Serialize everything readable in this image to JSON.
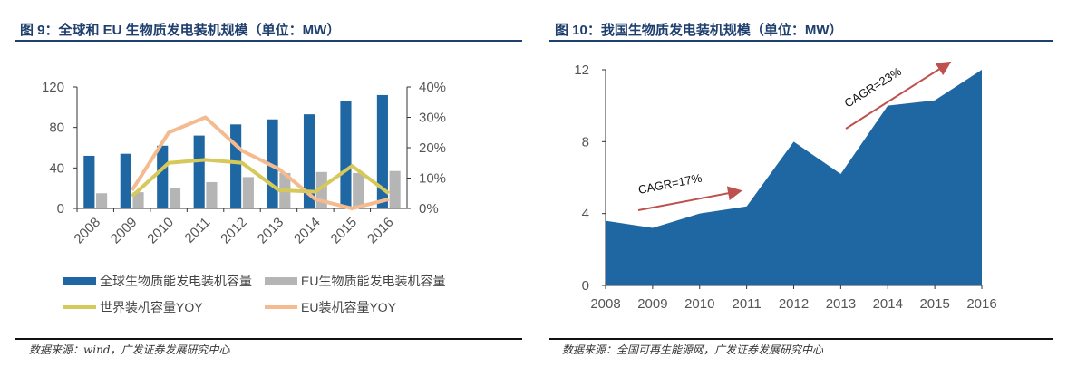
{
  "left": {
    "title": "图 9：全球和 EU 生物质发电装机规模（单位：MW）",
    "source": "数据来源：wind，广发证券发展研究中心"
  },
  "right": {
    "title": "图 10：我国生物质发电装机规模（单位：MW）",
    "source": "数据来源：全国可再生能源网，广发证券发展研究中心"
  },
  "colors": {
    "blue": "#1f67a3",
    "gray": "#b5b5b5",
    "yellow": "#d6c95a",
    "orange": "#f4bb91",
    "arrow": "#c0504d"
  },
  "chart_data": [
    {
      "type": "bar",
      "categories": [
        "2008",
        "2009",
        "2010",
        "2011",
        "2012",
        "2013",
        "2014",
        "2015",
        "2016"
      ],
      "yticks": [
        "0",
        "40",
        "80",
        "120"
      ],
      "ylim": [
        0,
        120
      ],
      "y2ticks": [
        "0%",
        "10%",
        "20%",
        "30%",
        "40%"
      ],
      "y2lim": [
        0,
        40
      ],
      "series": [
        {
          "name": "全球生物质能发电装机容量",
          "type": "bar",
          "axis": "left",
          "values": [
            52,
            54,
            62,
            72,
            83,
            88,
            93,
            106,
            112
          ]
        },
        {
          "name": "EU生物质能发电装机容量",
          "type": "bar",
          "axis": "left",
          "values": [
            15,
            16,
            20,
            26,
            31,
            35,
            36,
            35,
            37
          ]
        },
        {
          "name": "世界装机容量YOY",
          "type": "line",
          "axis": "right",
          "values": [
            null,
            4,
            15,
            16,
            15,
            6,
            5.5,
            14,
            5
          ]
        },
        {
          "name": "EU装机容量YOY",
          "type": "line",
          "axis": "right",
          "values": [
            null,
            6,
            25,
            30,
            19,
            13,
            3,
            0,
            3
          ]
        }
      ],
      "legend": "bottom"
    },
    {
      "type": "area",
      "categories": [
        "2008",
        "2009",
        "2010",
        "2011",
        "2012",
        "2013",
        "2014",
        "2015",
        "2016"
      ],
      "yticks": [
        "0",
        "4",
        "8",
        "12"
      ],
      "ylim": [
        0,
        12
      ],
      "values": [
        3.6,
        3.2,
        4.0,
        4.4,
        8.0,
        6.2,
        10.0,
        10.3,
        12.0
      ],
      "annotations": [
        "CAGR=17%",
        "CAGR=23%"
      ]
    }
  ]
}
